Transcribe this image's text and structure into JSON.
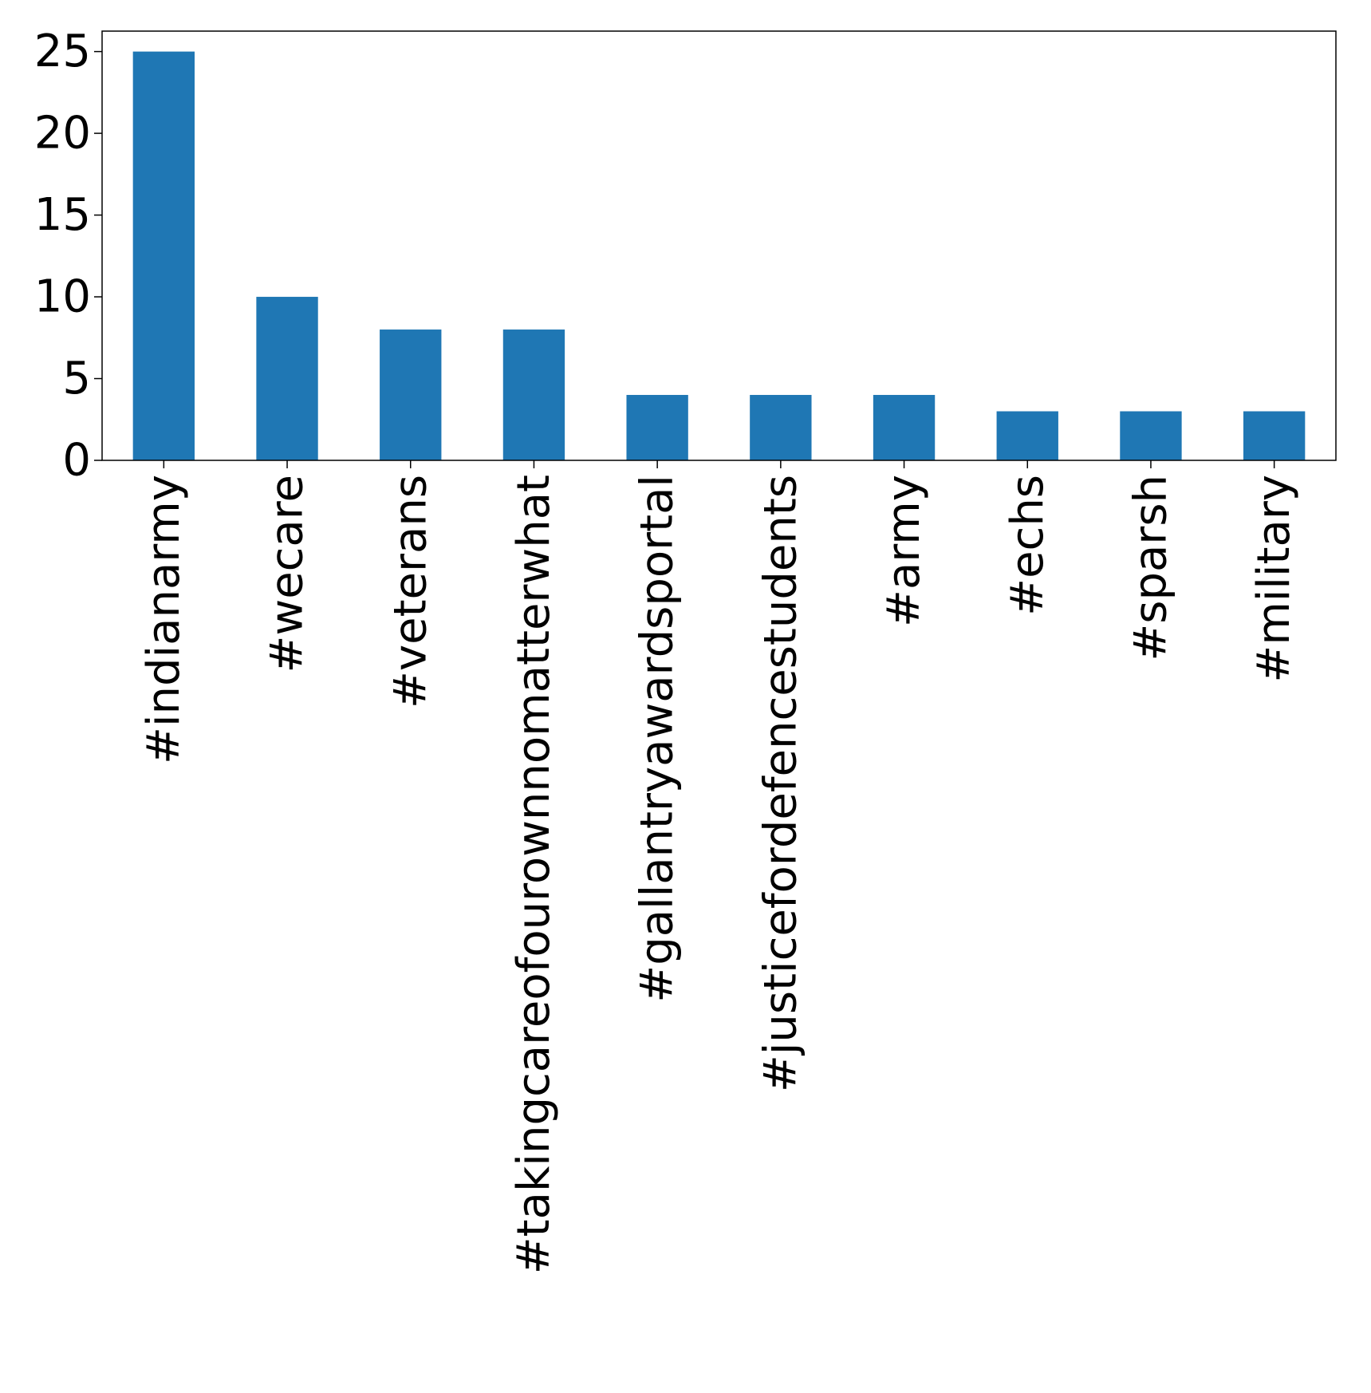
{
  "chart_data": {
    "type": "bar",
    "title": "",
    "xlabel": "",
    "ylabel": "",
    "categories": [
      "#indianarmy",
      "#wecare",
      "#veterans",
      "#takingcareofourownnomatterwhat",
      "#gallantryawardsportal",
      "#justicefordefencestudents",
      "#army",
      "#echs",
      "#sparsh",
      "#military"
    ],
    "values": [
      25,
      10,
      8,
      8,
      4,
      4,
      4,
      3,
      3,
      3
    ],
    "ylim": [
      0,
      26.25
    ],
    "yticks": [
      0,
      5,
      10,
      15,
      20,
      25
    ],
    "bar_color": "#1f77b4",
    "grid": false,
    "legend": "none"
  }
}
